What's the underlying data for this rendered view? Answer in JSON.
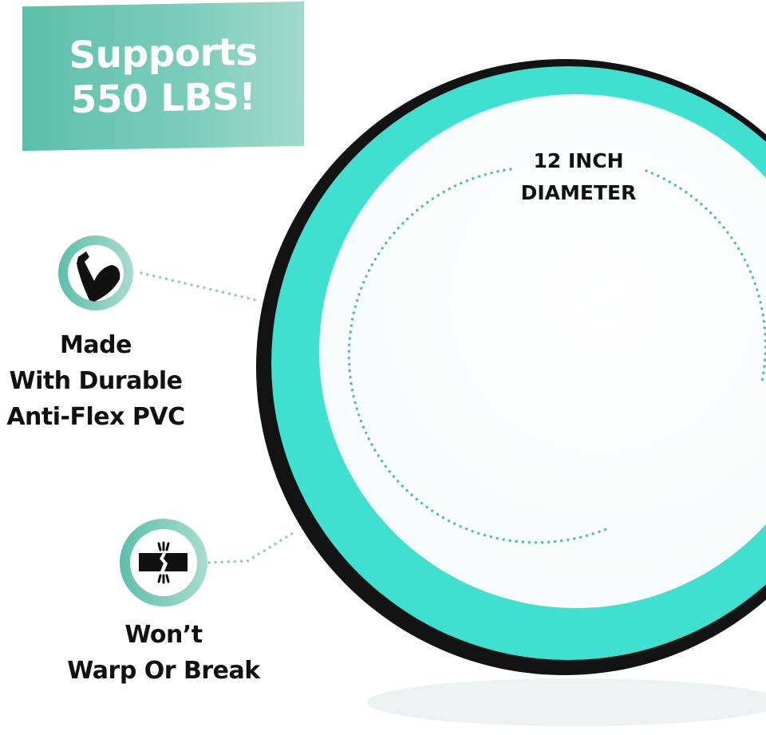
{
  "banner": {
    "line1": "Supports",
    "line2": "550 LBS!"
  },
  "diameter": {
    "line1": "12 INCH",
    "line2": "DIAMETER"
  },
  "features": [
    {
      "icon": "flexed-arm-icon",
      "lines": [
        "Made",
        "With Durable",
        "Anti-Flex PVC"
      ]
    },
    {
      "icon": "broken-bar-icon",
      "lines": [
        "Won’t",
        "Warp Or Break"
      ]
    }
  ],
  "colors": {
    "accent": "#6cc7b3",
    "wheel_teal": "#3fe0d0",
    "wheel_rim": "#111111",
    "text": "#111111"
  }
}
